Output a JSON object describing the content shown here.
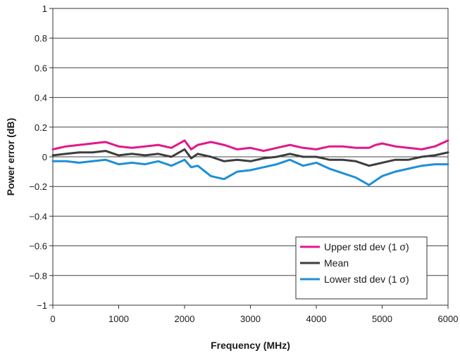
{
  "chart_data": {
    "type": "line",
    "title": "",
    "xlabel": "Frequency (MHz)",
    "ylabel": "Power error (dB)",
    "xlim": [
      0,
      6000
    ],
    "ylim": [
      -1,
      1
    ],
    "x_ticks": [
      "0",
      "1000",
      "2000",
      "3000",
      "4000",
      "5000",
      "6000"
    ],
    "y_ticks": [
      "1",
      "0.8",
      "0.6",
      "0.4",
      "0.2",
      "0",
      "−0.2",
      "−0.4",
      "−0.6",
      "−0.8",
      "−1"
    ],
    "grid": "horizontal",
    "legend_position": "bottom-right",
    "x": [
      0,
      200,
      400,
      600,
      800,
      1000,
      1200,
      1400,
      1600,
      1800,
      2000,
      2100,
      2200,
      2400,
      2600,
      2800,
      3000,
      3200,
      3400,
      3600,
      3800,
      4000,
      4200,
      4400,
      4600,
      4800,
      4900,
      5000,
      5200,
      5400,
      5600,
      5800,
      6000
    ],
    "series": [
      {
        "name": "Upper std dev (1 σ)",
        "color": "#e0198c",
        "values": [
          0.05,
          0.07,
          0.08,
          0.09,
          0.1,
          0.07,
          0.06,
          0.07,
          0.08,
          0.06,
          0.11,
          0.05,
          0.08,
          0.1,
          0.08,
          0.05,
          0.06,
          0.04,
          0.06,
          0.08,
          0.06,
          0.05,
          0.07,
          0.07,
          0.06,
          0.06,
          0.08,
          0.09,
          0.07,
          0.06,
          0.05,
          0.07,
          0.11
        ]
      },
      {
        "name": "Mean",
        "color": "#3d3d3d",
        "values": [
          0.01,
          0.02,
          0.03,
          0.03,
          0.04,
          0.01,
          0.02,
          0.01,
          0.02,
          0.0,
          0.05,
          -0.01,
          0.02,
          0.0,
          -0.03,
          -0.02,
          -0.03,
          -0.01,
          0.0,
          0.02,
          0.0,
          0.0,
          -0.02,
          -0.02,
          -0.03,
          -0.06,
          -0.05,
          -0.04,
          -0.02,
          -0.02,
          0.0,
          0.01,
          0.03
        ]
      },
      {
        "name": "Lower std dev (1 σ)",
        "color": "#1e8fd6",
        "values": [
          -0.03,
          -0.03,
          -0.04,
          -0.03,
          -0.02,
          -0.05,
          -0.04,
          -0.05,
          -0.03,
          -0.06,
          -0.02,
          -0.07,
          -0.06,
          -0.13,
          -0.15,
          -0.1,
          -0.09,
          -0.07,
          -0.05,
          -0.02,
          -0.06,
          -0.04,
          -0.08,
          -0.11,
          -0.14,
          -0.19,
          -0.16,
          -0.13,
          -0.1,
          -0.08,
          -0.06,
          -0.05,
          -0.05
        ]
      }
    ]
  }
}
